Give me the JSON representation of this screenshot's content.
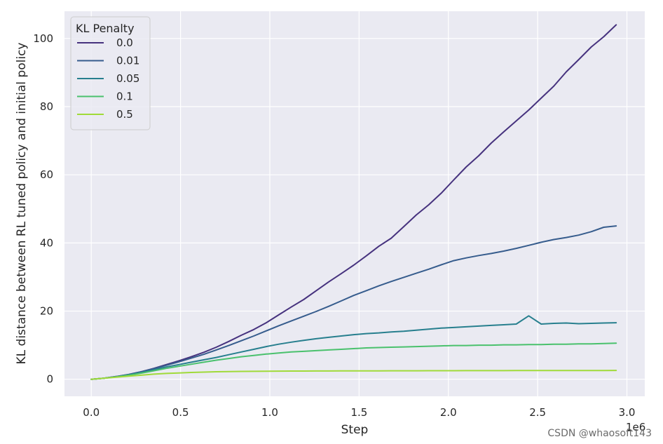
{
  "chart_data": {
    "type": "line",
    "xlabel": "Step",
    "ylabel": "KL distance between RL tuned policy and initial policy",
    "x_offset_label": "1e6",
    "xlim": [
      -0.15,
      3.1
    ],
    "ylim": [
      -5,
      108
    ],
    "xticks": [
      0.0,
      0.5,
      1.0,
      1.5,
      2.0,
      2.5,
      3.0
    ],
    "xtick_labels": [
      "0.0",
      "0.5",
      "1.0",
      "1.5",
      "2.0",
      "2.5",
      "3.0"
    ],
    "yticks": [
      0,
      20,
      40,
      60,
      80,
      100
    ],
    "ytick_labels": [
      "0",
      "20",
      "40",
      "60",
      "80",
      "100"
    ],
    "grid": true,
    "legend": {
      "title": "KL Penalty",
      "placement": "top-left"
    },
    "x": [
      0.0,
      0.07,
      0.14,
      0.21,
      0.28,
      0.35,
      0.42,
      0.49,
      0.56,
      0.63,
      0.7,
      0.77,
      0.84,
      0.91,
      0.98,
      1.05,
      1.12,
      1.19,
      1.26,
      1.33,
      1.4,
      1.47,
      1.54,
      1.61,
      1.68,
      1.75,
      1.82,
      1.89,
      1.96,
      2.03,
      2.1,
      2.17,
      2.24,
      2.31,
      2.38,
      2.45,
      2.52,
      2.59,
      2.66,
      2.73,
      2.8,
      2.87,
      2.94
    ],
    "series": [
      {
        "name": "0.0",
        "color": "#46327e",
        "values": [
          0,
          0.3,
          0.8,
          1.4,
          2.2,
          3.2,
          4.3,
          5.4,
          6.6,
          7.9,
          9.4,
          11.1,
          12.9,
          14.6,
          16.6,
          18.9,
          21.2,
          23.4,
          26.0,
          28.6,
          31.0,
          33.5,
          36.2,
          39.0,
          41.4,
          44.8,
          48.2,
          51.2,
          54.6,
          58.5,
          62.3,
          65.6,
          69.3,
          72.6,
          75.8,
          79.0,
          82.5,
          86.0,
          90.2,
          93.8,
          97.5,
          100.5,
          104.0
        ]
      },
      {
        "name": "0.01",
        "color": "#365c8d",
        "values": [
          0,
          0.3,
          0.8,
          1.4,
          2.2,
          3.1,
          4.1,
          5.1,
          6.2,
          7.3,
          8.6,
          9.9,
          11.3,
          12.7,
          14.2,
          15.7,
          17.1,
          18.5,
          19.9,
          21.4,
          23.0,
          24.6,
          26.0,
          27.4,
          28.7,
          29.9,
          31.1,
          32.3,
          33.6,
          34.8,
          35.6,
          36.3,
          36.9,
          37.6,
          38.4,
          39.3,
          40.2,
          41.0,
          41.6,
          42.3,
          43.3,
          44.6,
          45.0
        ]
      },
      {
        "name": "0.05",
        "color": "#277f8e",
        "values": [
          0,
          0.3,
          0.7,
          1.3,
          2.0,
          2.8,
          3.6,
          4.3,
          5.0,
          5.7,
          6.4,
          7.2,
          8.0,
          8.8,
          9.6,
          10.3,
          10.9,
          11.4,
          11.9,
          12.3,
          12.7,
          13.1,
          13.4,
          13.6,
          13.9,
          14.1,
          14.4,
          14.7,
          15.0,
          15.2,
          15.4,
          15.6,
          15.8,
          16.0,
          16.2,
          18.6,
          16.2,
          16.4,
          16.5,
          16.3,
          16.4,
          16.5,
          16.6
        ]
      },
      {
        "name": "0.1",
        "color": "#4ac16d",
        "values": [
          0,
          0.3,
          0.7,
          1.2,
          1.8,
          2.5,
          3.2,
          3.8,
          4.4,
          5.0,
          5.6,
          6.1,
          6.6,
          7.0,
          7.4,
          7.7,
          8.0,
          8.2,
          8.4,
          8.6,
          8.8,
          9.0,
          9.2,
          9.3,
          9.4,
          9.5,
          9.6,
          9.7,
          9.8,
          9.9,
          9.9,
          10.0,
          10.0,
          10.1,
          10.1,
          10.2,
          10.2,
          10.3,
          10.3,
          10.4,
          10.4,
          10.5,
          10.6
        ]
      },
      {
        "name": "0.5",
        "color": "#a0da39",
        "values": [
          0,
          0.3,
          0.6,
          0.9,
          1.2,
          1.5,
          1.7,
          1.85,
          2.0,
          2.1,
          2.2,
          2.25,
          2.3,
          2.33,
          2.36,
          2.38,
          2.4,
          2.42,
          2.43,
          2.44,
          2.45,
          2.46,
          2.47,
          2.48,
          2.49,
          2.5,
          2.5,
          2.51,
          2.52,
          2.52,
          2.53,
          2.53,
          2.54,
          2.54,
          2.55,
          2.55,
          2.56,
          2.56,
          2.57,
          2.57,
          2.58,
          2.58,
          2.59
        ]
      }
    ]
  },
  "watermark": "CSDN @whaosoft143"
}
